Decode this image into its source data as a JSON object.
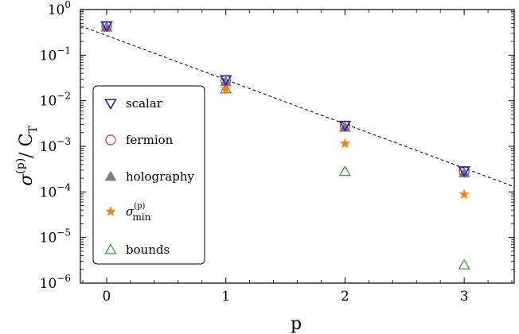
{
  "chart_data": {
    "type": "scatter",
    "title": "",
    "xlabel": "p",
    "ylabel": {
      "sigma": "σ",
      "sup": "(p)",
      "slash": "/ C",
      "sub": "T"
    },
    "xlim": [
      -0.22,
      3.42
    ],
    "ylim": [
      1e-06,
      1
    ],
    "yscale": "log",
    "x_ticks": [
      0,
      1,
      2,
      3
    ],
    "y_ticks": [
      {
        "value": 1.0,
        "base": "10",
        "exp": "0"
      },
      {
        "value": 0.1,
        "base": "10",
        "exp": "−1"
      },
      {
        "value": 0.01,
        "base": "10",
        "exp": "−2"
      },
      {
        "value": 0.001,
        "base": "10",
        "exp": "−3"
      },
      {
        "value": 0.0001,
        "base": "10",
        "exp": "−4"
      },
      {
        "value": 1e-05,
        "base": "10",
        "exp": "−5"
      },
      {
        "value": 1e-06,
        "base": "10",
        "exp": "−6"
      }
    ],
    "grid": false,
    "legend_position": "center-left",
    "series": [
      {
        "name": "scalar",
        "marker": "triangle-down-open",
        "color": "#1f1fd6",
        "x": [
          0,
          1,
          2,
          3
        ],
        "y": [
          0.44,
          0.029,
          0.0029,
          0.00029
        ]
      },
      {
        "name": "fermion",
        "marker": "circle-open",
        "color": "#e33232",
        "x": [
          0,
          1,
          2,
          3
        ],
        "y": [
          0.43,
          0.028,
          0.0028,
          0.00028
        ]
      },
      {
        "name": "holography",
        "marker": "triangle-up-filled",
        "color": "#7f7f7f",
        "x": [
          0,
          1,
          2,
          3
        ],
        "y": [
          0.41,
          0.026,
          0.0026,
          0.00026
        ]
      },
      {
        "name": {
          "sigma": "σ",
          "sup": "(p)",
          "sub": "min"
        },
        "marker": "star",
        "color": "#ff7f0e",
        "x": [
          0,
          1,
          2,
          3
        ],
        "y": [
          0.39,
          0.018,
          0.00115,
          8.8e-05
        ]
      },
      {
        "name": "bounds",
        "marker": "triangle-up-open",
        "color": "#2ca02c",
        "x": [
          0,
          1,
          2,
          3
        ],
        "y": [
          0.41,
          0.018,
          0.00028,
          2.5e-06
        ]
      }
    ],
    "fit_line": {
      "style": "dashed",
      "color": "#000000",
      "x": [
        -0.22,
        3.42
      ],
      "y": [
        0.44,
        0.00013
      ]
    }
  }
}
